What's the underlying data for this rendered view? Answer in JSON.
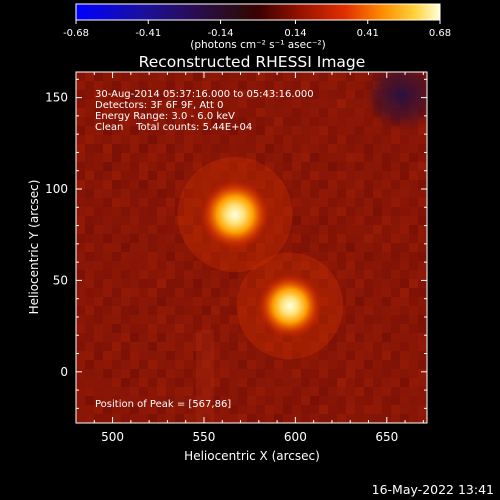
{
  "colorbar": {
    "min": -0.68,
    "max": 0.68,
    "tick_labels": [
      "-0.68",
      "-0.41",
      "-0.14",
      "0.14",
      "0.41",
      "0.68"
    ],
    "units_label": "(photons cm⁻² s⁻¹ asec⁻²)"
  },
  "plot": {
    "title": "Reconstructed RHESSI Image",
    "info_lines": [
      "30-Aug-2014 05:37:16.000 to 05:43:16.000",
      "Detectors: 3F 6F 9F, Att 0",
      "Energy Range: 3.0 - 6.0 keV",
      "Clean    Total counts: 5.44E+04"
    ],
    "peak_label": "Position of Peak = [567,86]",
    "timestamp": "16-May-2022 13:41"
  },
  "chart_data": {
    "type": "heatmap",
    "title": "Reconstructed RHESSI Image",
    "xlabel": "Heliocentric X (arcsec)",
    "ylabel": "Heliocentric Y (arcsec)",
    "xlim": [
      480,
      672
    ],
    "ylim": [
      -28,
      164
    ],
    "x_ticks": [
      500,
      550,
      600,
      650
    ],
    "y_ticks": [
      0,
      50,
      100,
      150
    ],
    "color_scale": {
      "min": -0.68,
      "max": 0.68,
      "units": "photons cm^-2 s^-1 asec^-2"
    },
    "sources": [
      {
        "x": 567,
        "y": 86,
        "peak_value": 0.68
      },
      {
        "x": 597,
        "y": 36,
        "peak_value": 0.62
      }
    ],
    "background_value": 0.18,
    "peak_position": [
      567,
      86
    ]
  }
}
